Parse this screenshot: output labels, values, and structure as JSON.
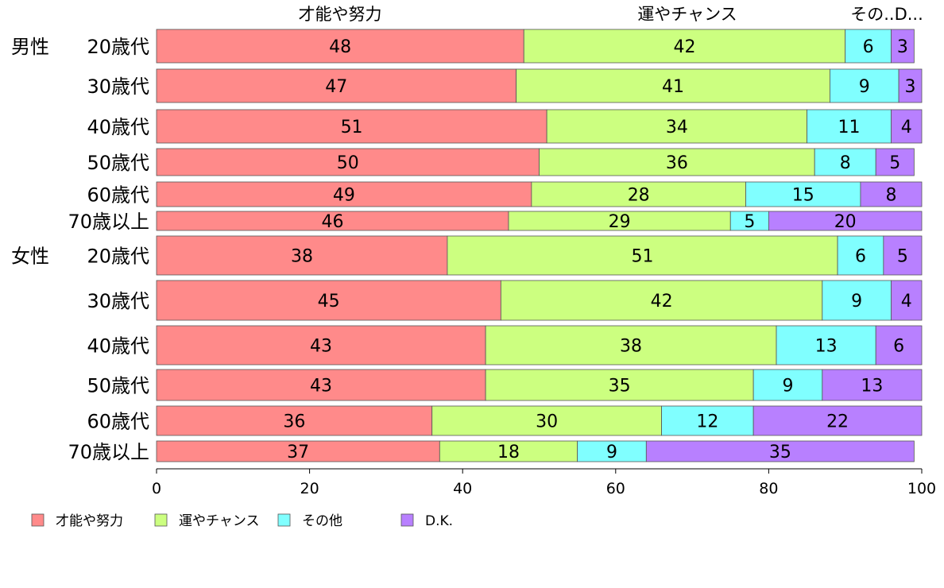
{
  "chart_data": {
    "type": "bar",
    "orientation": "horizontal",
    "stacked": true,
    "header_labels": [
      "才能や努力",
      "運やチャンス",
      "その..D..."
    ],
    "categories": [
      {
        "group": "男性",
        "label": "20歳代"
      },
      {
        "group": "",
        "label": "30歳代"
      },
      {
        "group": "",
        "label": "40歳代"
      },
      {
        "group": "",
        "label": "50歳代"
      },
      {
        "group": "",
        "label": "60歳代"
      },
      {
        "group": "",
        "label": "70歳以上"
      },
      {
        "group": "女性",
        "label": "20歳代"
      },
      {
        "group": "",
        "label": "30歳代"
      },
      {
        "group": "",
        "label": "40歳代"
      },
      {
        "group": "",
        "label": "50歳代"
      },
      {
        "group": "",
        "label": "60歳代"
      },
      {
        "group": "",
        "label": "70歳以上"
      }
    ],
    "series": [
      {
        "name": "才能や努力",
        "color": "#FF8A8A",
        "values": [
          48,
          47,
          51,
          50,
          49,
          46,
          38,
          45,
          43,
          43,
          36,
          37
        ]
      },
      {
        "name": "運やチャンス",
        "color": "#CCFF80",
        "values": [
          42,
          41,
          34,
          36,
          28,
          29,
          51,
          42,
          38,
          35,
          30,
          18
        ]
      },
      {
        "name": "その他",
        "color": "#80FFFF",
        "values": [
          6,
          9,
          11,
          8,
          15,
          5,
          6,
          9,
          13,
          9,
          12,
          9
        ]
      },
      {
        "name": "D.K.",
        "color": "#B880FF",
        "values": [
          3,
          3,
          4,
          5,
          8,
          20,
          5,
          4,
          6,
          13,
          22,
          35
        ]
      }
    ],
    "xlim": [
      0,
      100
    ],
    "xticks": [
      "0",
      "20",
      "40",
      "60",
      "80",
      "100"
    ],
    "legend_position": "bottom",
    "grid": false
  }
}
